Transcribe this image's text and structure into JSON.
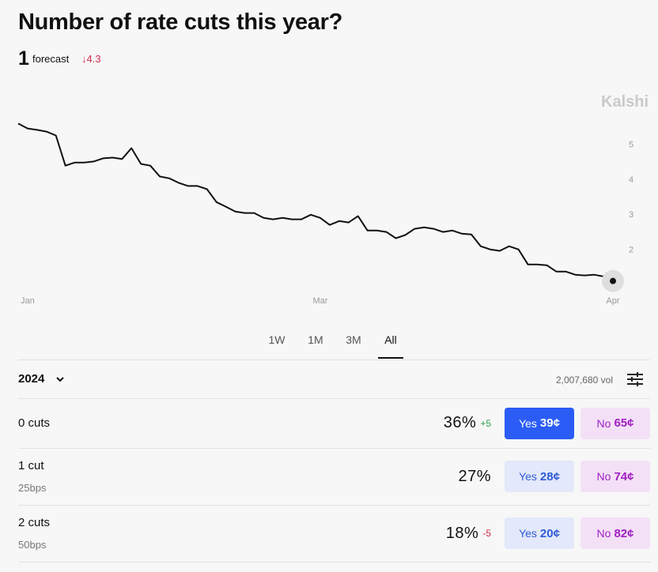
{
  "header": {
    "title": "Number of rate cuts this year?",
    "forecast_value": "1",
    "forecast_label": "forecast",
    "forecast_change": "↓4.3"
  },
  "watermark": "Kalshi",
  "chart_data": {
    "type": "line",
    "color": "#111111",
    "categories": [
      null,
      "Jan",
      null,
      null,
      null,
      null,
      null,
      null,
      null,
      null,
      null,
      null,
      null,
      null,
      null,
      null,
      null,
      null,
      null,
      null,
      null,
      null,
      null,
      null,
      null,
      null,
      null,
      null,
      null,
      null,
      null,
      null,
      "Mar",
      null,
      null,
      null,
      null,
      null,
      null,
      null,
      null,
      null,
      null,
      null,
      null,
      null,
      null,
      null,
      null,
      null,
      null,
      null,
      null,
      null,
      null,
      null,
      null,
      null,
      null,
      null,
      null,
      null,
      null,
      "Apr"
    ],
    "values": [
      5.61,
      5.47,
      5.43,
      5.38,
      5.27,
      4.41,
      4.5,
      4.5,
      4.53,
      4.62,
      4.64,
      4.6,
      4.91,
      4.46,
      4.41,
      4.1,
      4.05,
      3.92,
      3.83,
      3.83,
      3.74,
      3.37,
      3.24,
      3.1,
      3.06,
      3.06,
      2.92,
      2.88,
      2.92,
      2.88,
      2.88,
      3.01,
      2.92,
      2.72,
      2.83,
      2.79,
      2.97,
      2.56,
      2.56,
      2.52,
      2.34,
      2.43,
      2.61,
      2.65,
      2.61,
      2.52,
      2.56,
      2.47,
      2.45,
      2.11,
      2.02,
      1.98,
      2.11,
      2.02,
      1.59,
      1.59,
      1.57,
      1.39,
      1.39,
      1.3,
      1.28,
      1.3,
      1.25,
      1.12
    ],
    "ylim": [
      1,
      5.8
    ],
    "yticks": [
      2,
      3,
      4,
      5
    ],
    "yaxis_side": "right",
    "grid": false
  },
  "range_tabs": {
    "options": [
      "1W",
      "1M",
      "3M",
      "All"
    ],
    "selected": 3
  },
  "market": {
    "year": "2024",
    "volume": "2,007,680 vol",
    "outcomes": [
      {
        "name": "0 cuts",
        "percent": "36%",
        "delta": "+5",
        "delta_color": "#2e9e4f",
        "yes_label": "Yes",
        "yes_price": "39¢",
        "no_label": "No",
        "no_price": "65¢",
        "yes_selected": true
      },
      {
        "name": "1 cut",
        "detail": "25bps",
        "percent": "27%",
        "yes_label": "Yes",
        "yes_price": "28¢",
        "no_label": "No",
        "no_price": "74¢",
        "yes_selected": false
      },
      {
        "name": "2 cuts",
        "detail": "50bps",
        "percent": "18%",
        "delta": "-5",
        "delta_color": "#d02a4a",
        "yes_label": "Yes",
        "yes_price": "20¢",
        "no_label": "No",
        "no_price": "82¢",
        "yes_selected": false
      }
    ]
  }
}
